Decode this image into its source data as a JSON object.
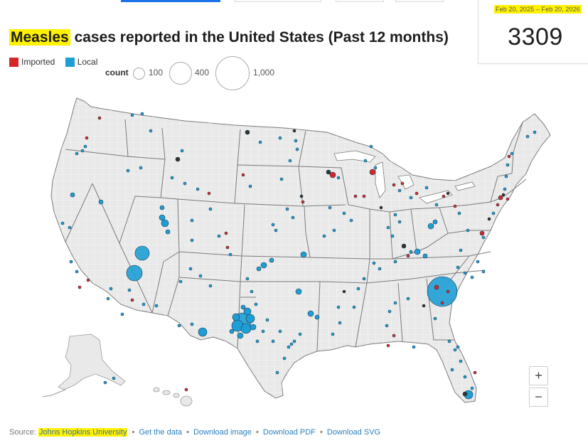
{
  "stat": {
    "date_range": "Feb 20, 2025 – Feb 20, 2026",
    "total": "3309"
  },
  "title": {
    "highlight": "Measles",
    "rest": " cases reported in the United States (Past 12 months)"
  },
  "legend": {
    "types": [
      {
        "label": "Imported",
        "color": "#d62728"
      },
      {
        "label": "Local",
        "color": "#1f9ed6"
      }
    ],
    "count_label": "count",
    "sizes": [
      {
        "label": "100",
        "value": 100
      },
      {
        "label": "400",
        "value": 400
      },
      {
        "label": "1,000",
        "value": 1000
      }
    ]
  },
  "zoom": {
    "in": "+",
    "out": "−"
  },
  "footer": {
    "source_prefix": "Source: ",
    "source_name": "Johns Hopkins University",
    "links": [
      "Get the data",
      "Download image",
      "Download PDF",
      "Download SVG"
    ],
    "separator": "•"
  },
  "colors": {
    "imported": "#d62728",
    "local": "#1f9ed6",
    "land": "#e9e9e9",
    "state_border": "#7a7a7a",
    "county_border": "#ffffff"
  }
}
